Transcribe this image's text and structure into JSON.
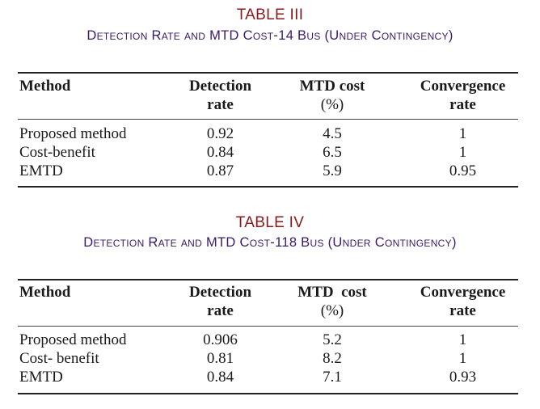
{
  "table3": {
    "number": "TABLE III",
    "caption": "Detection Rate and MTD Cost-14 Bus (Under Contingency)",
    "headers": {
      "method": "Method",
      "detection": [
        "Detection",
        "rate"
      ],
      "mtd_cost": [
        "MTD cost",
        "(%)"
      ],
      "convergence": [
        "Convergence",
        "rate"
      ]
    },
    "rows": [
      {
        "method": "Proposed method",
        "detection": "0.92",
        "mtd_cost": "4.5",
        "convergence": "1"
      },
      {
        "method": "Cost-benefit",
        "detection": "0.84",
        "mtd_cost": "6.5",
        "convergence": "1"
      },
      {
        "method": "EMTD",
        "detection": "0.87",
        "mtd_cost": "5.9",
        "convergence": "0.95"
      }
    ]
  },
  "table4": {
    "number": "TABLE IV",
    "caption": "Detection Rate and MTD Cost-118 Bus (Under Contingency)",
    "headers": {
      "method": "Method",
      "detection": [
        "Detection",
        "rate"
      ],
      "mtd_cost": [
        "MTD  cost",
        "(%)"
      ],
      "convergence": [
        "Convergence",
        "rate"
      ]
    },
    "rows": [
      {
        "method": "Proposed method",
        "detection": "0.906",
        "mtd_cost": "5.2",
        "convergence": "1"
      },
      {
        "method": "Cost- benefit",
        "detection": "0.81",
        "mtd_cost": "8.2",
        "convergence": "1"
      },
      {
        "method": "EMTD",
        "detection": "0.84",
        "mtd_cost": "7.1",
        "convergence": "0.93"
      }
    ]
  }
}
